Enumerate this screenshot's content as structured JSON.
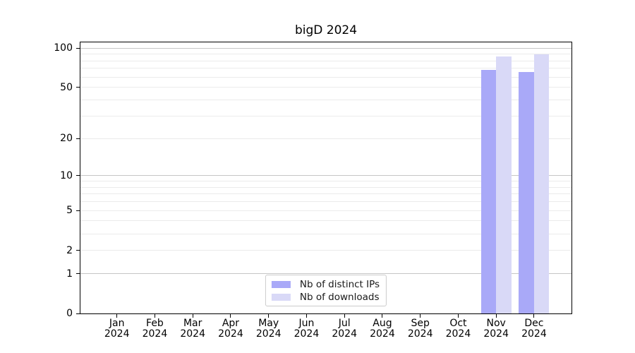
{
  "chart_data": {
    "type": "bar",
    "title": "bigD 2024",
    "xlabel": "",
    "ylabel": "",
    "yscale": "log1p",
    "ylim": [
      0,
      112
    ],
    "yticks": [
      0,
      1,
      2,
      5,
      10,
      20,
      50,
      100
    ],
    "major_gridlines": [
      1,
      10,
      100
    ],
    "minor_gridlines": [
      2,
      3,
      4,
      5,
      6,
      7,
      8,
      9,
      20,
      30,
      40,
      50,
      60,
      70,
      80,
      90
    ],
    "grid": "horizontal",
    "legend_position": "lower center inside axes",
    "categories": [
      {
        "month": "Jan",
        "year": "2024"
      },
      {
        "month": "Feb",
        "year": "2024"
      },
      {
        "month": "Mar",
        "year": "2024"
      },
      {
        "month": "Apr",
        "year": "2024"
      },
      {
        "month": "May",
        "year": "2024"
      },
      {
        "month": "Jun",
        "year": "2024"
      },
      {
        "month": "Jul",
        "year": "2024"
      },
      {
        "month": "Aug",
        "year": "2024"
      },
      {
        "month": "Sep",
        "year": "2024"
      },
      {
        "month": "Oct",
        "year": "2024"
      },
      {
        "month": "Nov",
        "year": "2024"
      },
      {
        "month": "Dec",
        "year": "2024"
      }
    ],
    "series": [
      {
        "name": "Nb of distinct IPs",
        "color": "#a9a9f8",
        "values": [
          0,
          0,
          0,
          0,
          0,
          0,
          0,
          0,
          0,
          0,
          68,
          66
        ]
      },
      {
        "name": "Nb of downloads",
        "color": "#d9d9f7",
        "values": [
          0,
          0,
          0,
          0,
          0,
          0,
          0,
          0,
          0,
          0,
          86,
          90
        ]
      }
    ],
    "colors": {
      "grid_major": "#c6c6c6",
      "grid_minor": "#ebebeb",
      "spine": "#000000",
      "legend_border": "#cccccc",
      "legend_background": "#ffffff",
      "text": "#000000"
    }
  }
}
